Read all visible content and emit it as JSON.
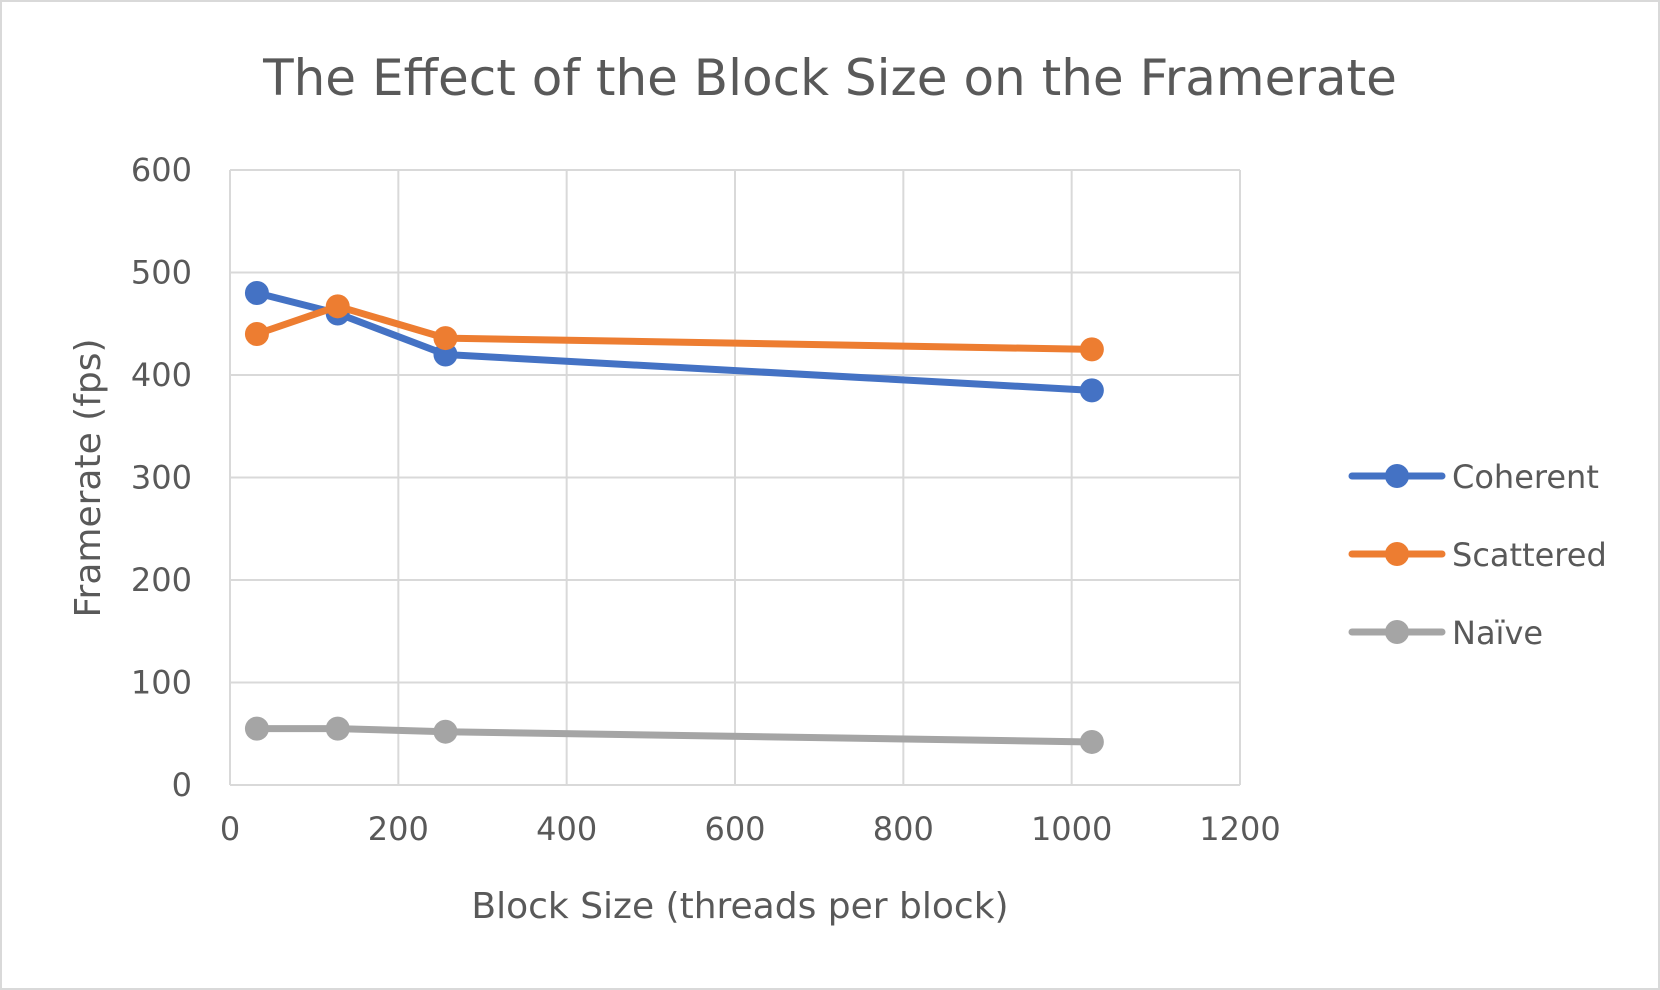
{
  "chart_data": {
    "type": "scatter",
    "title": "The Effect of the Block Size on the Framerate",
    "xlabel": "Block Size (threads per block)",
    "ylabel": "Framerate (fps)",
    "xlim": [
      0,
      1200
    ],
    "ylim": [
      0,
      600
    ],
    "xticks": [
      0,
      200,
      400,
      600,
      800,
      1000,
      1200
    ],
    "yticks": [
      0,
      100,
      200,
      300,
      400,
      500,
      600
    ],
    "grid": true,
    "legend_position": "right",
    "series": [
      {
        "name": "Coherent",
        "color": "#4472c4",
        "points": [
          [
            32,
            480
          ],
          [
            128,
            460
          ],
          [
            256,
            420
          ],
          [
            1024,
            385
          ]
        ]
      },
      {
        "name": "Scattered",
        "color": "#ed7d31",
        "points": [
          [
            32,
            440
          ],
          [
            128,
            467
          ],
          [
            256,
            436
          ],
          [
            1024,
            425
          ]
        ]
      },
      {
        "name": "Naïve",
        "color": "#a5a5a5",
        "points": [
          [
            32,
            55
          ],
          [
            128,
            55
          ],
          [
            256,
            52
          ],
          [
            1024,
            42
          ]
        ]
      }
    ]
  }
}
